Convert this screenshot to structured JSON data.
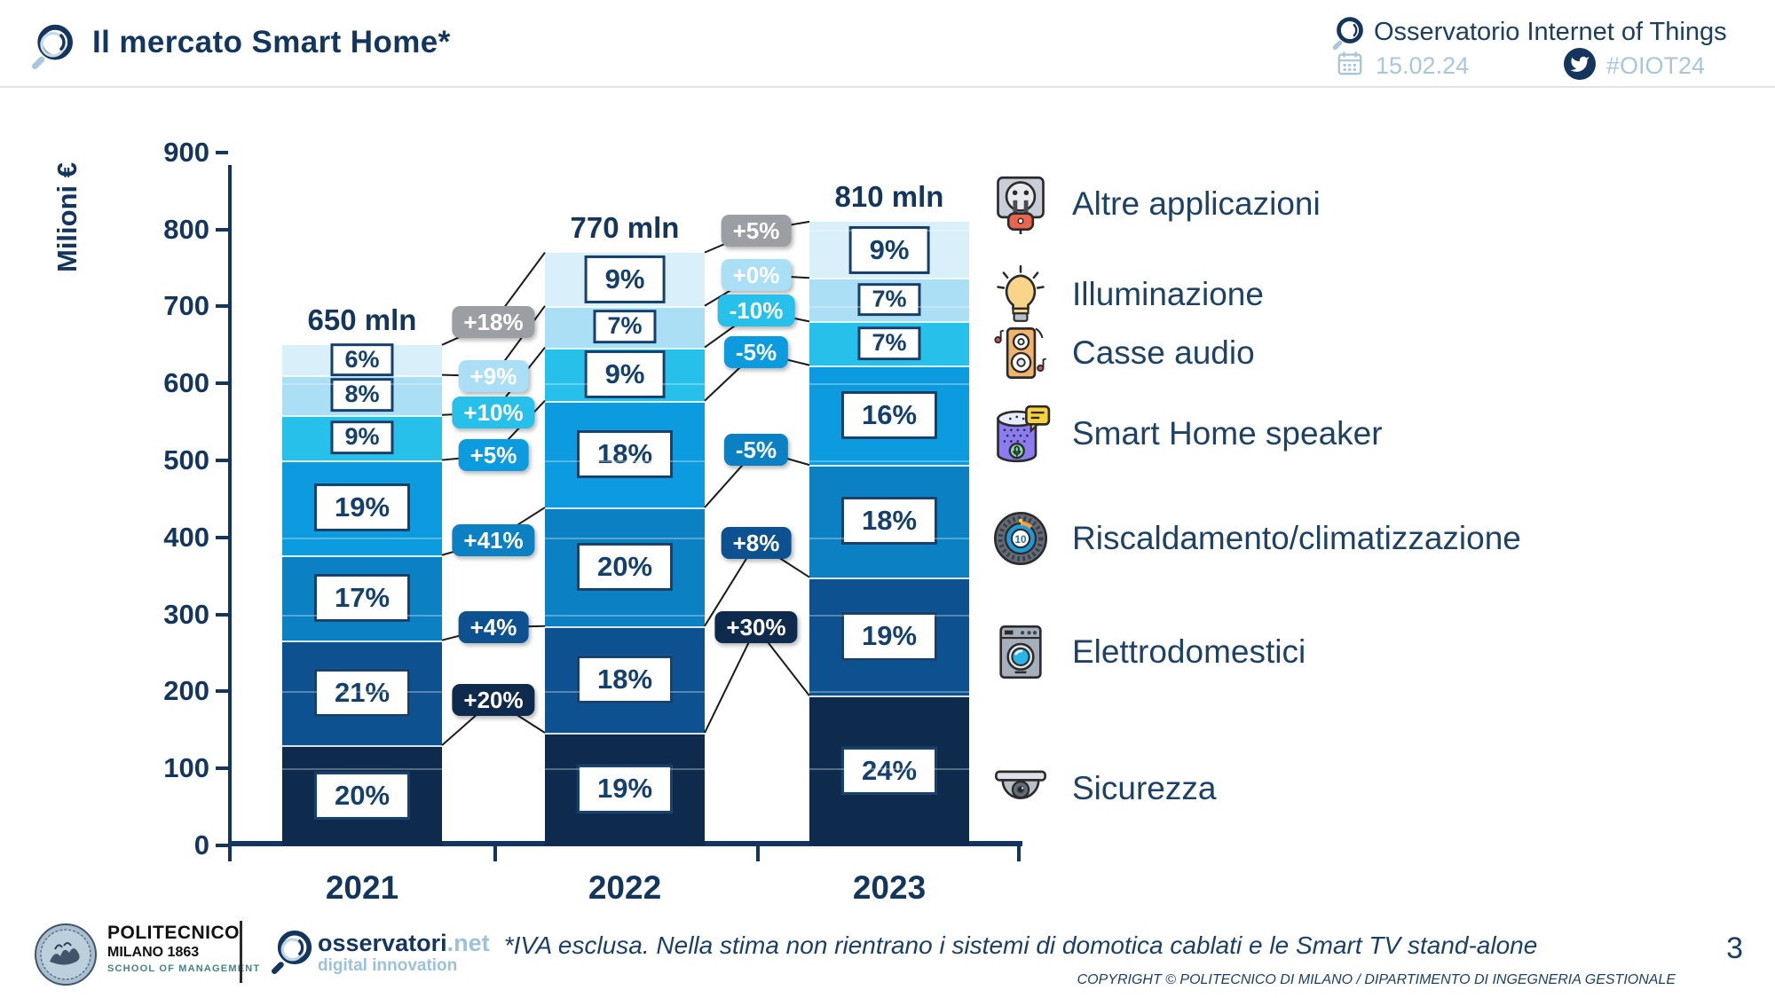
{
  "header": {
    "title": "Il mercato Smart Home*",
    "brand": "Osservatorio Internet of Things",
    "date": "15.02.24",
    "hashtag": "#OIOT24"
  },
  "chart_data": {
    "type": "bar",
    "stacked": true,
    "title": "Il mercato Smart Home*",
    "ylabel": "Milioni €",
    "ylim": [
      0,
      900
    ],
    "ytick_step": 100,
    "grid": false,
    "legend_position": "right",
    "categories": [
      "2021",
      "2022",
      "2023"
    ],
    "totals_mln": [
      650,
      770,
      810
    ],
    "total_labels": [
      "650 mln",
      "770 mln",
      "810 mln"
    ],
    "series_bottom_to_top": [
      {
        "name": "Sicurezza",
        "color": "#0e2b4d",
        "values_pct": [
          20,
          19,
          24
        ]
      },
      {
        "name": "Elettrodomestici",
        "color": "#0e5190",
        "values_pct": [
          21,
          18,
          19
        ]
      },
      {
        "name": "Riscaldamento/climatizzazione",
        "color": "#0b80c2",
        "values_pct": [
          17,
          20,
          18
        ]
      },
      {
        "name": "Smart Home speaker",
        "color": "#0c9bdf",
        "values_pct": [
          19,
          18,
          16
        ]
      },
      {
        "name": "Casse audio",
        "color": "#27c0ea",
        "values_pct": [
          9,
          9,
          7
        ]
      },
      {
        "name": "Illuminazione",
        "color": "#abdff5",
        "values_pct": [
          8,
          7,
          7
        ]
      },
      {
        "name": "Altre applicazioni",
        "color": "#d9effa",
        "values_pct": [
          6,
          9,
          9
        ]
      }
    ],
    "growth_badges": [
      {
        "between": [
          "2021",
          "2022"
        ],
        "items_top_to_bottom": [
          {
            "label": "+18%",
            "color": "#9b9fa3"
          },
          {
            "label": "+9%",
            "color": "#abdff5"
          },
          {
            "label": "+10%",
            "color": "#27c0ea"
          },
          {
            "label": "+5%",
            "color": "#0c9bdf"
          },
          {
            "label": "+41%",
            "color": "#0b80c2"
          },
          {
            "label": "+4%",
            "color": "#0e5190"
          },
          {
            "label": "+20%",
            "color": "#0e2b4d"
          }
        ]
      },
      {
        "between": [
          "2022",
          "2023"
        ],
        "items_top_to_bottom": [
          {
            "label": "+5%",
            "color": "#9b9fa3"
          },
          {
            "label": "+0%",
            "color": "#abdff5"
          },
          {
            "label": "-10%",
            "color": "#27c0ea"
          },
          {
            "label": "-5%",
            "color": "#0c9bdf"
          },
          {
            "label": "-5%",
            "color": "#0b80c2"
          },
          {
            "label": "+8%",
            "color": "#0e5190"
          },
          {
            "label": "+30%",
            "color": "#0e2b4d"
          }
        ]
      }
    ]
  },
  "legend": {
    "items": [
      {
        "label": "Altre applicazioni",
        "icon": "plug-icon"
      },
      {
        "label": "Illuminazione",
        "icon": "bulb-icon"
      },
      {
        "label": "Casse audio",
        "icon": "speaker-icon"
      },
      {
        "label": "Smart Home speaker",
        "icon": "smart-speaker-icon"
      },
      {
        "label": "Riscaldamento/climatizzazione",
        "icon": "thermostat-icon"
      },
      {
        "label": "Elettrodomestici",
        "icon": "washing-machine-icon"
      },
      {
        "label": "Sicurezza",
        "icon": "security-camera-icon"
      }
    ]
  },
  "footer": {
    "politecnico": {
      "line1": "POLITECNICO",
      "line2": "MILANO 1863",
      "line3": "SCHOOL OF MANAGEMENT"
    },
    "osservatori": {
      "name": "osservatori",
      "tld": ".net",
      "tagline": "digital innovation"
    },
    "note": "*IVA esclusa. Nella stima non rientrano i sistemi di domotica cablati e le Smart TV stand-alone",
    "copyright": "COPYRIGHT © POLITECNICO DI MILANO / DIPARTIMENTO DI INGEGNERIA GESTIONALE",
    "page_number": "3"
  }
}
